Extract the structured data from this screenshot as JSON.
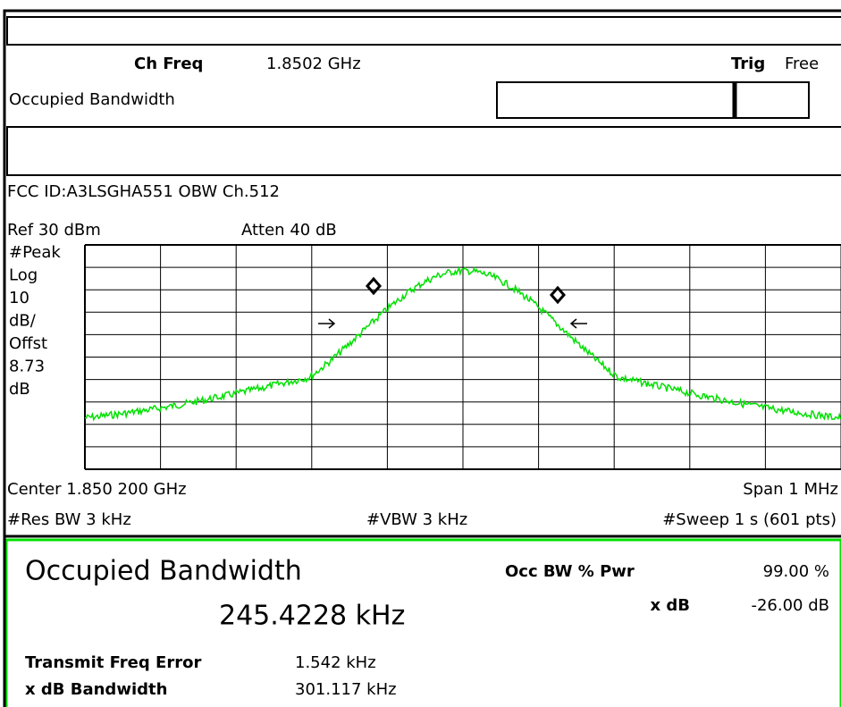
{
  "header": {
    "ch_freq_label": "Ch Freq",
    "ch_freq_value": "1.8502 GHz",
    "trig_label": "Trig",
    "trig_value": "Free",
    "mode": "Occupied Bandwidth"
  },
  "trace_info": {
    "title": "FCC ID:A3LSGHA551 OBW Ch.512",
    "ref": "Ref 30 dBm",
    "atten": "Atten 40 dB",
    "side_labels": [
      "#Peak",
      "Log",
      "10",
      "dB/",
      "Offst",
      "8.73",
      "dB"
    ]
  },
  "footer": {
    "center": "Center 1.850 200 GHz",
    "span": "Span 1 MHz",
    "res_bw": "#Res BW 3 kHz",
    "vbw": "#VBW 3 kHz",
    "sweep": "#Sweep 1 s (601 pts)"
  },
  "results": {
    "title": "Occupied Bandwidth",
    "value": "245.4228 kHz",
    "occ_pwr_label": "Occ BW % Pwr",
    "occ_pwr_value": "99.00 %",
    "xdb_label": "x dB",
    "xdb_value": "-26.00 dB",
    "tfe_label": "Transmit Freq Error",
    "tfe_value": "1.542 kHz",
    "xdb_bw_label": "x dB Bandwidth",
    "xdb_bw_value": "301.117 kHz"
  }
}
